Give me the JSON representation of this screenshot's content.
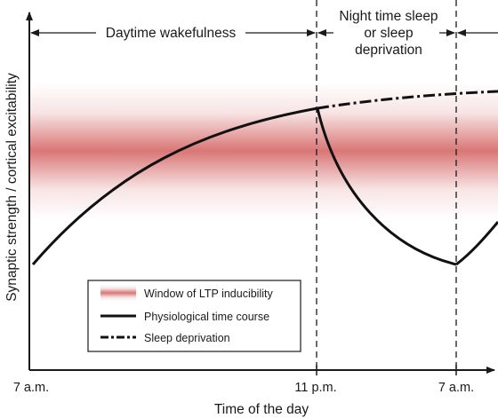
{
  "axes": {
    "y_label": "Synaptic strength / cortical excitability",
    "x_label": "Time of the day",
    "x_ticks": [
      "7 a.m.",
      "11 p.m.",
      "7 a.m."
    ]
  },
  "periods": {
    "day": "Daytime wakefulness",
    "night_line1": "Night time sleep",
    "night_line2": "or sleep",
    "night_line3": "deprivation"
  },
  "legend": {
    "ltp_window": "Window of LTP inducibility",
    "physiological": "Physiological time course",
    "deprivation": "Sleep deprivation"
  },
  "colors": {
    "band_core": "#d66a6a",
    "curve": "#111111",
    "axis": "#1a1a1a"
  }
}
